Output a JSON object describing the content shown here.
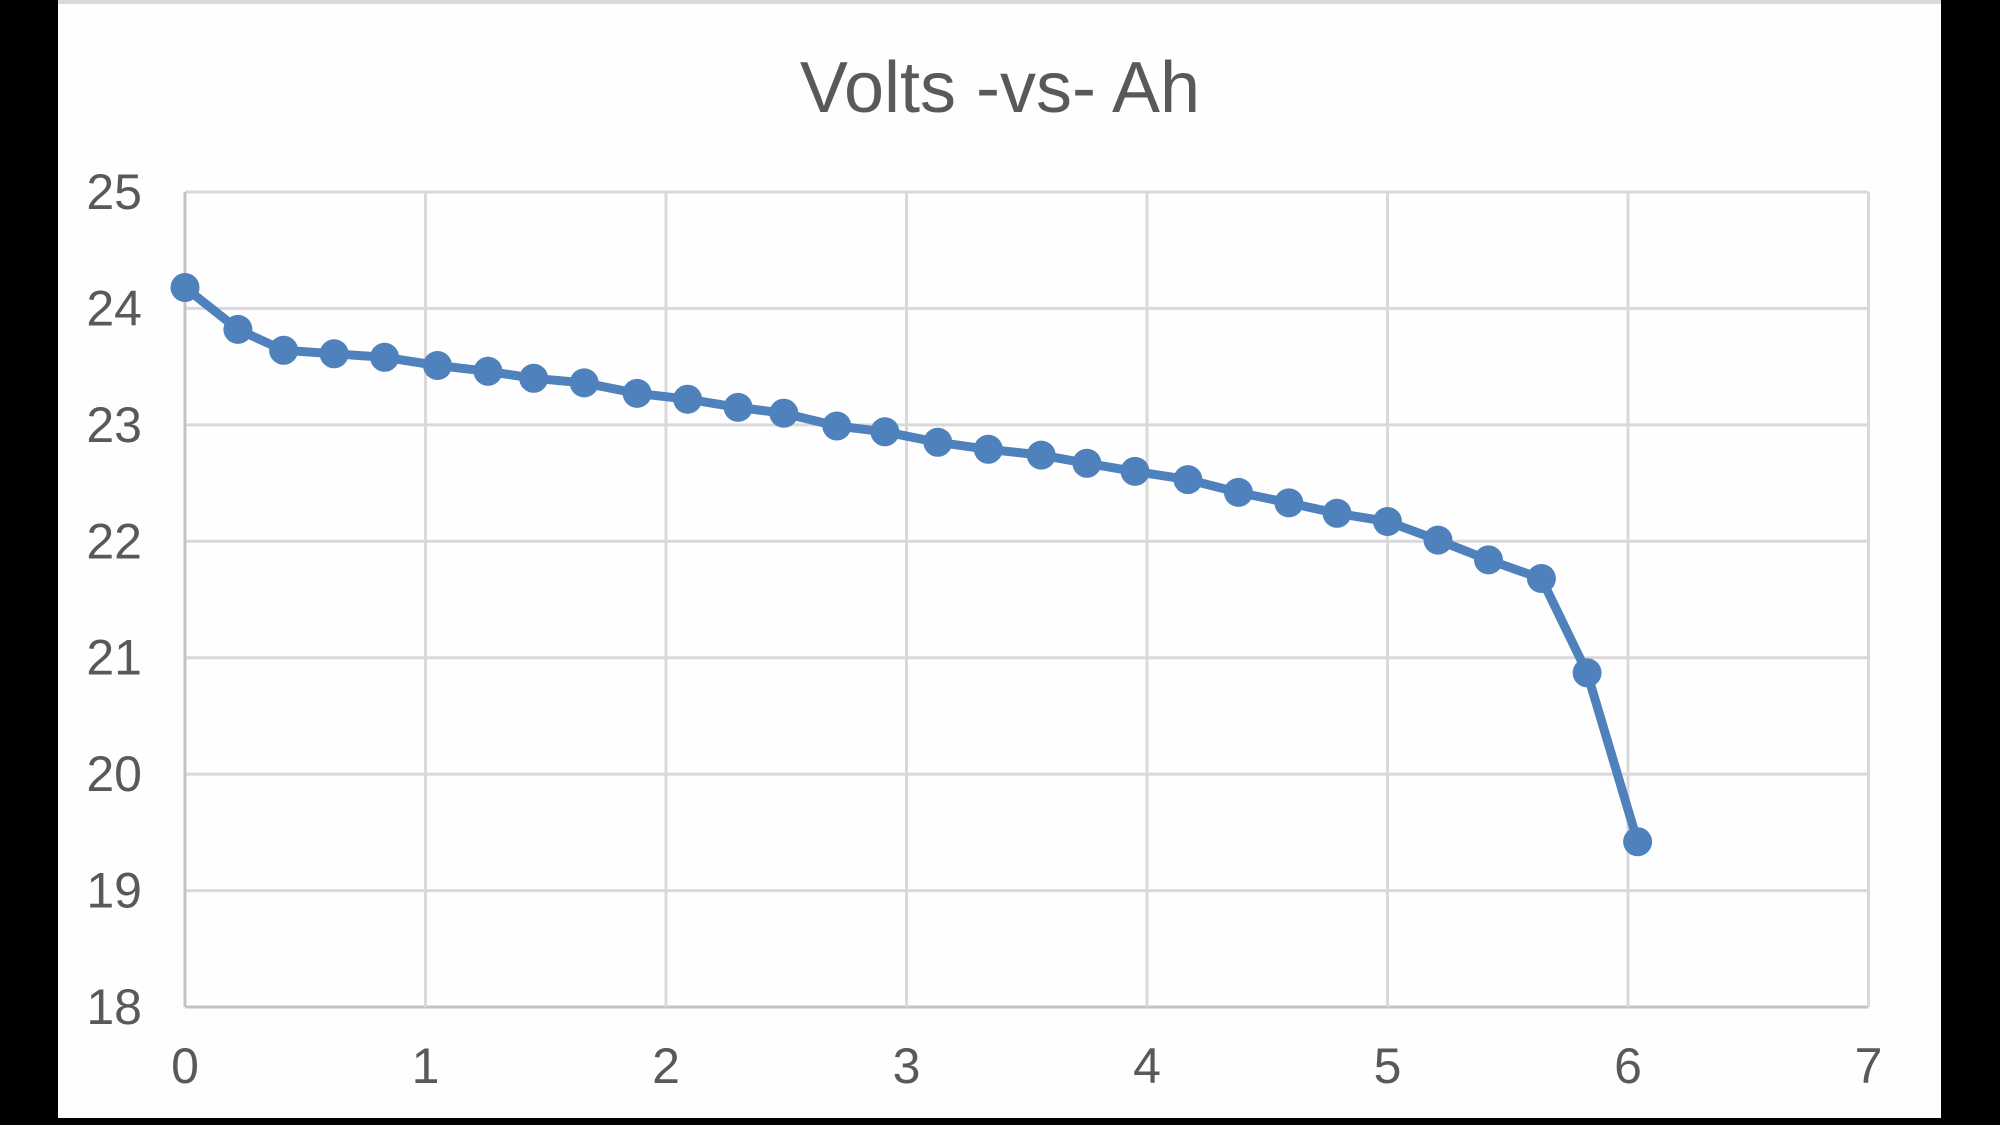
{
  "window": {
    "background_color": "#000000",
    "canvas_color": "#fefefe",
    "canvas_top_edge_color": "#d9d9d9"
  },
  "chart_data": {
    "type": "line",
    "title": "Volts -vs- Ah",
    "xlabel": "",
    "ylabel": "",
    "xlim": [
      0,
      7
    ],
    "ylim": [
      18,
      25
    ],
    "x_ticks": [
      0,
      1,
      2,
      3,
      4,
      5,
      6,
      7
    ],
    "y_ticks": [
      18,
      19,
      20,
      21,
      22,
      23,
      24,
      25
    ],
    "grid": true,
    "legend": false,
    "marker": "circle",
    "series": [
      {
        "name": "Volts",
        "x": [
          0.0,
          0.22,
          0.41,
          0.62,
          0.83,
          1.05,
          1.26,
          1.45,
          1.66,
          1.88,
          2.09,
          2.3,
          2.49,
          2.71,
          2.91,
          3.13,
          3.34,
          3.56,
          3.75,
          3.95,
          4.17,
          4.38,
          4.59,
          4.79,
          5.0,
          5.21,
          5.42,
          5.64,
          5.83,
          6.04
        ],
        "y": [
          24.18,
          23.82,
          23.64,
          23.61,
          23.58,
          23.51,
          23.46,
          23.4,
          23.36,
          23.27,
          23.22,
          23.15,
          23.1,
          22.99,
          22.94,
          22.85,
          22.79,
          22.74,
          22.67,
          22.6,
          22.53,
          22.42,
          22.33,
          22.24,
          22.17,
          22.01,
          21.84,
          21.68,
          20.87,
          19.42
        ]
      }
    ],
    "colors": {
      "series": "#4f81bd",
      "gridline": "#d9d9d9",
      "axis_line": "#c3c3c3",
      "text": "#595959"
    }
  }
}
